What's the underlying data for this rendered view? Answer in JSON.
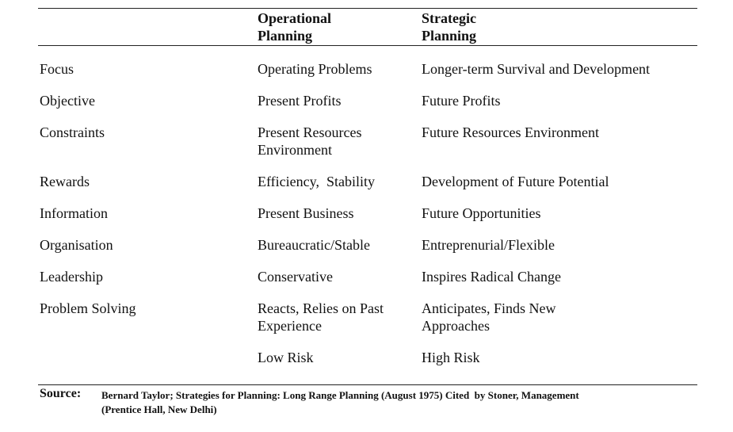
{
  "table": {
    "header": [
      null,
      [
        "Operational",
        "Planning"
      ],
      [
        "Strategic",
        "Planning"
      ]
    ],
    "rows": [
      [
        "Focus",
        "Operating Problems",
        "Longer-term Survival and Development"
      ],
      [
        "Objective",
        "Present Profits",
        "Future Profits"
      ],
      [
        "Constraints",
        [
          "Present Resources",
          "Environment"
        ],
        "Future Resources Environment"
      ],
      [
        "Rewards",
        "Efficiency,  Stability",
        "Development of Future Potential"
      ],
      [
        "Information",
        "Present Business",
        "Future Opportunities"
      ],
      [
        "Organisation",
        "Bureaucratic/Stable",
        "Entreprenurial/Flexible"
      ],
      [
        "Leadership",
        "Conservative",
        "Inspires Radical Change"
      ],
      [
        "Problem Solving",
        [
          "Reacts, Relies on Past",
          "Experience"
        ],
        [
          "Anticipates, Finds New",
          "Approaches"
        ]
      ],
      [
        null,
        "Low Risk",
        "High Risk"
      ]
    ]
  },
  "source": {
    "label": "Source:",
    "text": [
      "Bernard Taylor; Strategies for Planning: Long Range Planning (August 1975) Cited  by Stoner, Management",
      "(Prentice Hall, New Delhi)"
    ]
  }
}
